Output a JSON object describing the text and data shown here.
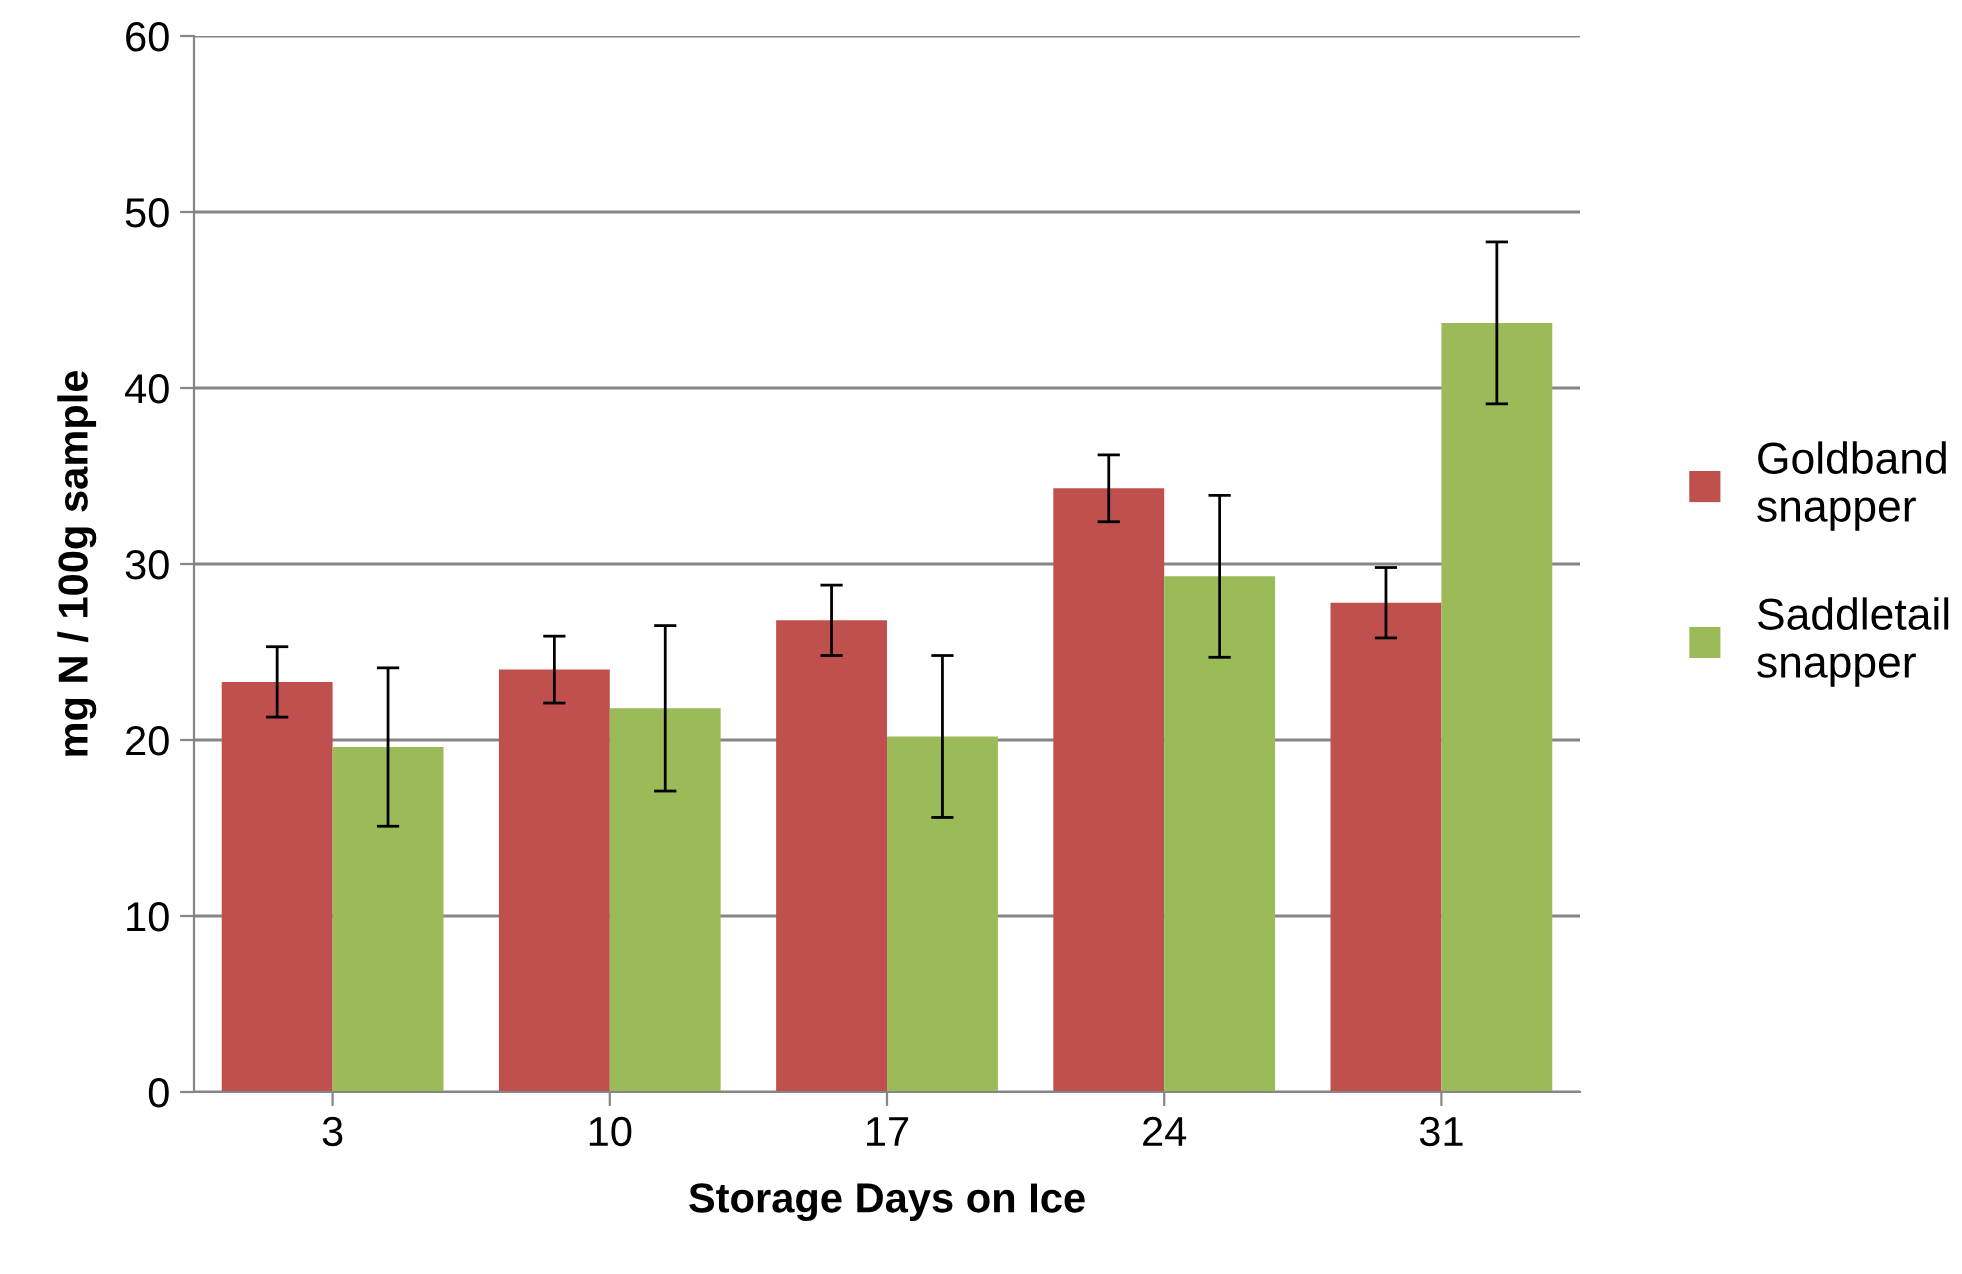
{
  "chart_data": {
    "type": "bar",
    "xlabel": "Storage Days on Ice",
    "ylabel": "mg N / 100g sample",
    "categories": [
      "3",
      "10",
      "17",
      "24",
      "31"
    ],
    "series": [
      {
        "name": "Goldband\nsnapper",
        "color": "#c0504d",
        "values": [
          23.3,
          24.0,
          26.8,
          34.3,
          27.8
        ],
        "errors": [
          2.0,
          1.9,
          2.0,
          1.9,
          2.0
        ]
      },
      {
        "name": "Saddletail\nsnapper",
        "color": "#9bbb59",
        "values": [
          19.6,
          21.8,
          20.2,
          29.3,
          43.7
        ],
        "errors": [
          4.5,
          4.7,
          4.6,
          4.6,
          4.6
        ]
      }
    ],
    "ylim": [
      0,
      60
    ],
    "yticks": [
      0,
      10,
      20,
      30,
      40,
      50,
      60
    ],
    "grid": "y",
    "legend": "right"
  }
}
